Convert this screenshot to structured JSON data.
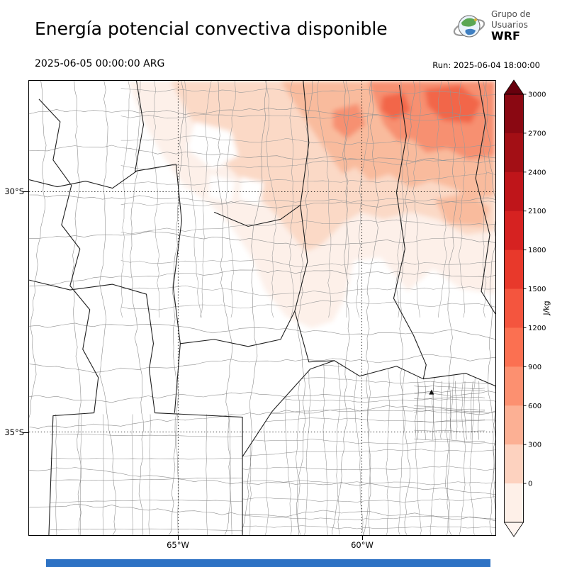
{
  "header": {
    "title": "Energía potencial convectiva disponible",
    "valid_time": "2025-06-05 00:00:00 ARG",
    "run_label": "Run: 2025-06-04 18:00:00"
  },
  "logo": {
    "line1": "Grupo de",
    "line2": "Usuarios",
    "line3": "WRF"
  },
  "map": {
    "lat_labels": [
      "30°S",
      "35°S"
    ],
    "lon_labels": [
      "65°W",
      "60°W"
    ],
    "shade_colors": {
      "l0": "#fdf0e9",
      "l1": "#fbd9c6",
      "l2": "#f9bb9d",
      "l3": "#f79071",
      "l4": "#f2664a",
      "white": "#ffffff"
    }
  },
  "colorbar": {
    "unit": "J/kg",
    "tick_labels_top_to_bottom": [
      "3000",
      "2700",
      "2400",
      "2100",
      "1800",
      "1500",
      "1200",
      "900",
      "600",
      "300",
      "0"
    ],
    "segment_colors_top_to_bottom": [
      "#8a0812",
      "#a30f15",
      "#bf151a",
      "#d62221",
      "#e8392b",
      "#f4553e",
      "#fb7051",
      "#fc9070",
      "#fcb094",
      "#fdd2bf",
      "#fef0e8"
    ],
    "arrow_top_color": "#67000d",
    "arrow_bottom_color": "#fff5f0"
  },
  "footer": {
    "color": "#2e72c4"
  },
  "chart_data": {
    "type": "map-contour",
    "title": "Energía potencial convectiva disponible",
    "variable": "CAPE (convective available potential energy)",
    "unit": "J/kg",
    "contour_levels": [
      0,
      300,
      600,
      900,
      1200,
      1500,
      1800,
      2100,
      2400,
      2700,
      3000
    ],
    "valid_time": "2025-06-05 00:00:00 ARG",
    "model_run": "2025-06-04 18:00:00",
    "lat_gridlines": [
      "30°S",
      "35°S"
    ],
    "lon_gridlines": [
      "65°W",
      "60°W"
    ],
    "field_summary": "CAPE of roughly 100–900 J/kg shaded over the northern part of the domain (north of ~31°S), strongest (~900–1200 J/kg) toward the northeast corner; near 0 over the center and south."
  }
}
